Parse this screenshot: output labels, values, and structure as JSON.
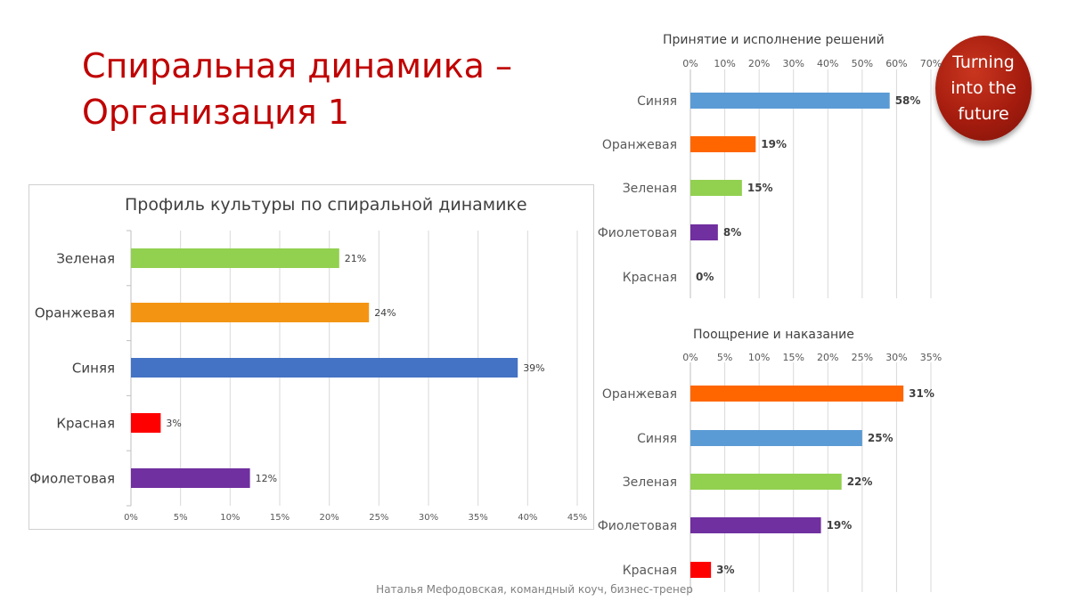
{
  "slide": {
    "title": "Спиральная динамика – Организация 1",
    "footer": "Наталья Мефодовская, командный коуч, бизнес-тренер"
  },
  "logo": {
    "line1": "Turning",
    "line2": "into the",
    "line3": "future",
    "color": "#a51c0e"
  },
  "chart_data": [
    {
      "id": "profile",
      "type": "bar",
      "orientation": "horizontal",
      "title": "Профиль культуры по спиральной динамике",
      "categories": [
        "Зеленая",
        "Оранжевая",
        "Синяя",
        "Красная",
        "Фиолетовая"
      ],
      "values": [
        21,
        24,
        39,
        3,
        12
      ],
      "labels": [
        "21%",
        "24%",
        "39%",
        "3%",
        "12%"
      ],
      "colors": [
        "#92d050",
        "#f39513",
        "#4472c4",
        "#ff0000",
        "#7030a0"
      ],
      "xlim": [
        0,
        45
      ],
      "ticks": [
        "0%",
        "5%",
        "10%",
        "15%",
        "20%",
        "25%",
        "30%",
        "35%",
        "40%",
        "45%"
      ],
      "axis_position": "bottom",
      "grid": true
    },
    {
      "id": "decisions",
      "type": "bar",
      "orientation": "horizontal",
      "title": "Принятие и исполнение решений",
      "categories": [
        "Синяя",
        "Оранжевая",
        "Зеленая",
        "Фиолетовая",
        "Красная"
      ],
      "values": [
        58,
        19,
        15,
        8,
        0
      ],
      "labels": [
        "58%",
        "19%",
        "15%",
        "8%",
        "0%"
      ],
      "colors": [
        "#5b9bd5",
        "#ff6600",
        "#92d050",
        "#7030a0",
        "#ff0000"
      ],
      "xlim": [
        0,
        70
      ],
      "ticks": [
        "0%",
        "10%",
        "20%",
        "30%",
        "40%",
        "50%",
        "60%",
        "70%"
      ],
      "axis_position": "top",
      "grid": true
    },
    {
      "id": "reward",
      "type": "bar",
      "orientation": "horizontal",
      "title": "Поощрение и наказание",
      "categories": [
        "Оранжевая",
        "Синяя",
        "Зеленая",
        "Фиолетовая",
        "Красная"
      ],
      "values": [
        31,
        25,
        22,
        19,
        3
      ],
      "labels": [
        "31%",
        "25%",
        "22%",
        "19%",
        "3%"
      ],
      "colors": [
        "#ff6600",
        "#5b9bd5",
        "#92d050",
        "#7030a0",
        "#ff0000"
      ],
      "xlim": [
        0,
        35
      ],
      "ticks": [
        "0%",
        "5%",
        "10%",
        "15%",
        "20%",
        "25%",
        "30%",
        "35%"
      ],
      "axis_position": "top",
      "grid": true
    }
  ]
}
